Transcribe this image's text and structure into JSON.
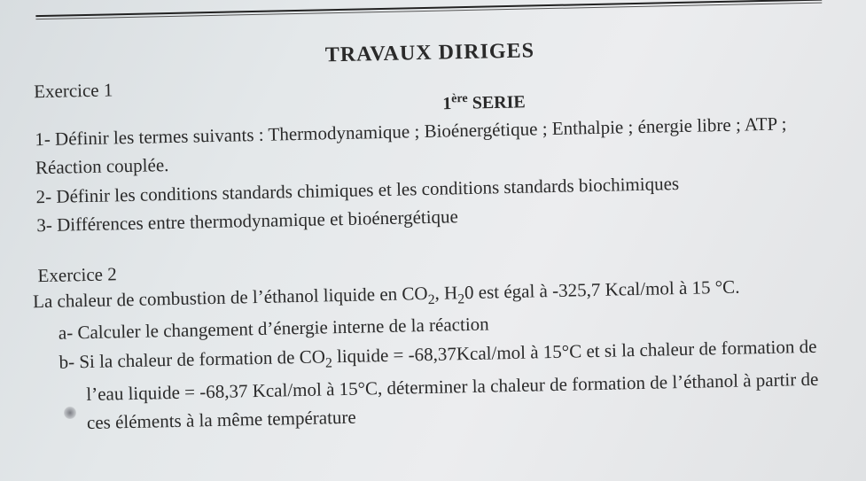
{
  "rules": {
    "top_color": "#222222"
  },
  "heading": {
    "main": "TRAVAUX DIRIGES",
    "serie_prefix": "1",
    "serie_sup": "ère",
    "serie_word": " SERIE"
  },
  "ex1": {
    "title": "Exercice 1",
    "q1": "1- Définir les termes suivants : Thermodynamique ; Bioénergétique ; Enthalpie ; énergie libre ; ATP ; Réaction couplée.",
    "q2": "2- Définir les conditions standards chimiques et les conditions standards biochimiques",
    "q3": "3- Différences entre thermodynamique et bioénergétique"
  },
  "ex2": {
    "title": "Exercice 2",
    "intro_pre": "La chaleur de combustion de l’éthanol liquide en CO",
    "co2_sub": "2",
    "intro_mid": ", H",
    "h2_sub": "2",
    "intro_post": "0 est égal à -325,7 Kcal/mol à 15 °C.",
    "a": "a-   Calculer le changement d’énergie interne de la réaction",
    "b_pre": "b-   Si la chaleur de formation de CO",
    "b_sub1": "2",
    "b_mid": " liquide = -68,37Kcal/mol à 15°C et si la chaleur de formation de l’eau liquide = -68,37 Kcal/mol à 15°C, déterminer la chaleur de formation de l’éthanol à partir de ces éléments à  la même température"
  }
}
